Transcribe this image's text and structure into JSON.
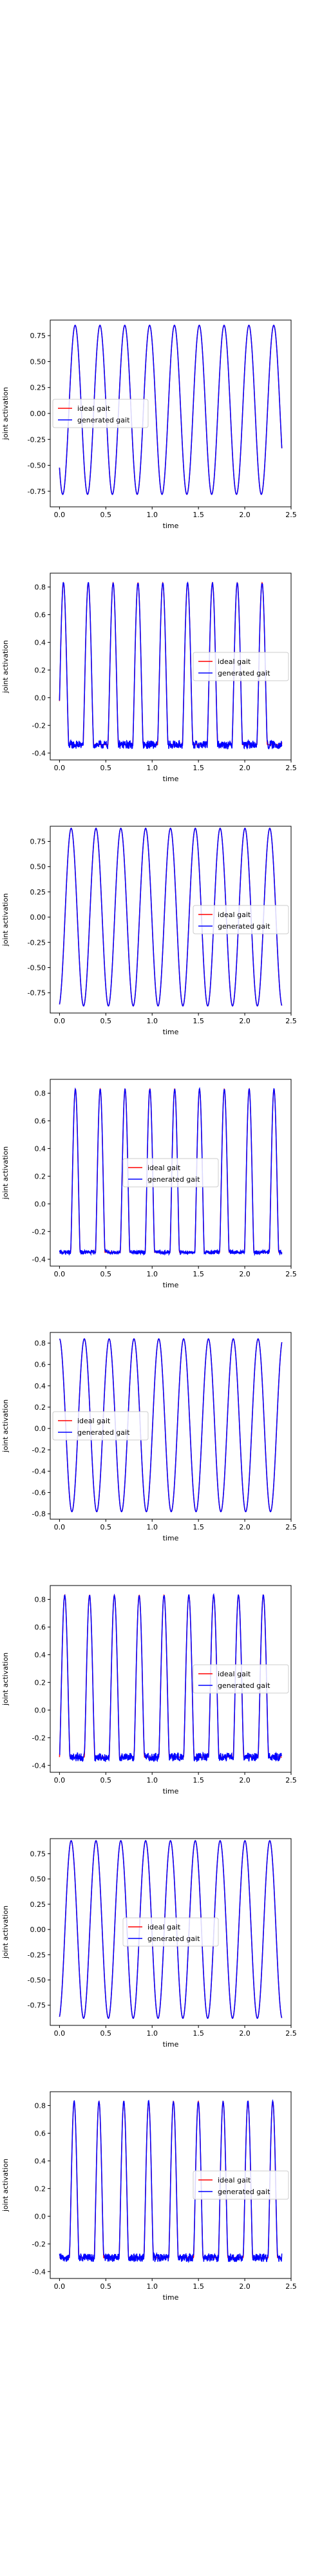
{
  "colors": {
    "ideal": "#ff0000",
    "generated": "#0000ff",
    "axis": "#000000"
  },
  "chart_data": [
    {
      "type": "line",
      "xlabel": "time",
      "ylabel": "joint activation",
      "xlim": [
        -0.1,
        2.5
      ],
      "ylim": [
        -0.9,
        0.9
      ],
      "xticks": [
        "0.0",
        "0.5",
        "1.0",
        "1.5",
        "2.0",
        "2.5"
      ],
      "yticks": [
        "-0.75",
        "-0.50",
        "-0.25",
        "0.00",
        "0.25",
        "0.50",
        "0.75"
      ],
      "legend": {
        "entries": [
          "ideal gait",
          "generated gait"
        ],
        "placement": "center-left"
      },
      "signal": {
        "shape": "sine",
        "min": -0.78,
        "max": 0.85,
        "period": 0.268,
        "x_start": 0.0,
        "x_end": 2.4,
        "phase_at_start": 0.62,
        "noise": 0.0
      },
      "series": [
        {
          "name": "ideal gait"
        },
        {
          "name": "generated gait"
        }
      ]
    },
    {
      "type": "line",
      "xlabel": "time",
      "ylabel": "joint activation",
      "xlim": [
        -0.1,
        2.5
      ],
      "ylim": [
        -0.45,
        0.9
      ],
      "xticks": [
        "0.0",
        "0.5",
        "1.0",
        "1.5",
        "2.0",
        "2.5"
      ],
      "yticks": [
        "-0.4",
        "-0.2",
        "0.0",
        "0.2",
        "0.4",
        "0.6",
        "0.8"
      ],
      "legend": {
        "entries": [
          "ideal gait",
          "generated gait"
        ],
        "placement": "center-right"
      },
      "signal": {
        "shape": "pulse",
        "min": -0.34,
        "max": 0.83,
        "period": 0.268,
        "x_start": 0.0,
        "x_end": 2.4,
        "phase_at_start": 0.05,
        "duty": 0.42,
        "noise": 0.03
      },
      "series": [
        {
          "name": "ideal gait"
        },
        {
          "name": "generated gait"
        }
      ]
    },
    {
      "type": "line",
      "xlabel": "time",
      "ylabel": "joint activation",
      "xlim": [
        -0.1,
        2.5
      ],
      "ylim": [
        -0.95,
        0.9
      ],
      "xticks": [
        "0.0",
        "0.5",
        "1.0",
        "1.5",
        "2.0",
        "2.5"
      ],
      "yticks": [
        "-0.75",
        "-0.50",
        "-0.25",
        "0.00",
        "0.25",
        "0.50",
        "0.75"
      ],
      "legend": {
        "entries": [
          "ideal gait",
          "generated gait"
        ],
        "placement": "center-right"
      },
      "signal": {
        "shape": "sine",
        "min": -0.88,
        "max": 0.88,
        "period": 0.268,
        "x_start": 0.0,
        "x_end": 2.4,
        "phase_at_start": 0.78,
        "noise": 0.0
      },
      "series": [
        {
          "name": "ideal gait"
        },
        {
          "name": "generated gait"
        }
      ]
    },
    {
      "type": "line",
      "xlabel": "time",
      "ylabel": "joint activation",
      "xlim": [
        -0.1,
        2.5
      ],
      "ylim": [
        -0.45,
        0.9
      ],
      "xticks": [
        "0.0",
        "0.5",
        "1.0",
        "1.5",
        "2.0",
        "2.5"
      ],
      "yticks": [
        "-0.4",
        "-0.2",
        "0.0",
        "0.2",
        "0.4",
        "0.6",
        "0.8"
      ],
      "legend": {
        "entries": [
          "ideal gait",
          "generated gait"
        ],
        "placement": "center"
      },
      "signal": {
        "shape": "pulse",
        "min": -0.35,
        "max": 0.83,
        "period": 0.268,
        "x_start": 0.0,
        "x_end": 2.4,
        "phase_at_start": 0.55,
        "duty": 0.38,
        "noise": 0.015
      },
      "series": [
        {
          "name": "ideal gait"
        },
        {
          "name": "generated gait"
        }
      ]
    },
    {
      "type": "line",
      "xlabel": "time",
      "ylabel": "joint activation",
      "xlim": [
        -0.1,
        2.5
      ],
      "ylim": [
        -0.85,
        0.9
      ],
      "xticks": [
        "0.0",
        "0.5",
        "1.0",
        "1.5",
        "2.0",
        "2.5"
      ],
      "yticks": [
        "-0.8",
        "-0.6",
        "-0.4",
        "-0.2",
        "0.0",
        "0.2",
        "0.4",
        "0.6",
        "0.8"
      ],
      "legend": {
        "entries": [
          "ideal gait",
          "generated gait"
        ],
        "placement": "center-left"
      },
      "signal": {
        "shape": "sine",
        "min": -0.78,
        "max": 0.84,
        "period": 0.268,
        "x_start": 0.0,
        "x_end": 2.4,
        "phase_at_start": 0.25,
        "noise": 0.0
      },
      "series": [
        {
          "name": "ideal gait"
        },
        {
          "name": "generated gait"
        }
      ]
    },
    {
      "type": "line",
      "xlabel": "time",
      "ylabel": "joint activation",
      "xlim": [
        -0.1,
        2.5
      ],
      "ylim": [
        -0.45,
        0.9
      ],
      "xticks": [
        "0.0",
        "0.5",
        "1.0",
        "1.5",
        "2.0",
        "2.5"
      ],
      "yticks": [
        "-0.4",
        "-0.2",
        "0.0",
        "0.2",
        "0.4",
        "0.6",
        "0.8"
      ],
      "legend": {
        "entries": [
          "ideal gait",
          "generated gait"
        ],
        "placement": "center-right"
      },
      "signal": {
        "shape": "pulse",
        "min": -0.34,
        "max": 0.83,
        "period": 0.268,
        "x_start": 0.0,
        "x_end": 2.4,
        "phase_at_start": 0.0,
        "duty": 0.42,
        "noise": 0.03
      },
      "series": [
        {
          "name": "ideal gait"
        },
        {
          "name": "generated gait"
        }
      ]
    },
    {
      "type": "line",
      "xlabel": "time",
      "ylabel": "joint activation",
      "xlim": [
        -0.1,
        2.5
      ],
      "ylim": [
        -0.95,
        0.9
      ],
      "xticks": [
        "0.0",
        "0.5",
        "1.0",
        "1.5",
        "2.0",
        "2.5"
      ],
      "yticks": [
        "-0.75",
        "-0.50",
        "-0.25",
        "0.00",
        "0.25",
        "0.50",
        "0.75"
      ],
      "legend": {
        "entries": [
          "ideal gait",
          "generated gait"
        ],
        "placement": "center"
      },
      "signal": {
        "shape": "sine",
        "min": -0.88,
        "max": 0.88,
        "period": 0.268,
        "x_start": 0.0,
        "x_end": 2.4,
        "phase_at_start": 0.78,
        "noise": 0.0
      },
      "series": [
        {
          "name": "ideal gait"
        },
        {
          "name": "generated gait"
        }
      ]
    },
    {
      "type": "line",
      "xlabel": "time",
      "ylabel": "joint activation",
      "xlim": [
        -0.1,
        2.5
      ],
      "ylim": [
        -0.45,
        0.9
      ],
      "xticks": [
        "0.0",
        "0.5",
        "1.0",
        "1.5",
        "2.0",
        "2.5"
      ],
      "yticks": [
        "-0.4",
        "-0.2",
        "0.0",
        "0.2",
        "0.4",
        "0.6",
        "0.8"
      ],
      "legend": {
        "entries": [
          "ideal gait",
          "generated gait"
        ],
        "placement": "center-right"
      },
      "signal": {
        "shape": "pulse",
        "min": -0.3,
        "max": 0.83,
        "period": 0.268,
        "x_start": 0.0,
        "x_end": 2.4,
        "phase_at_start": 0.6,
        "duty": 0.38,
        "noise": 0.03
      },
      "series": [
        {
          "name": "ideal gait"
        },
        {
          "name": "generated gait"
        }
      ]
    }
  ]
}
